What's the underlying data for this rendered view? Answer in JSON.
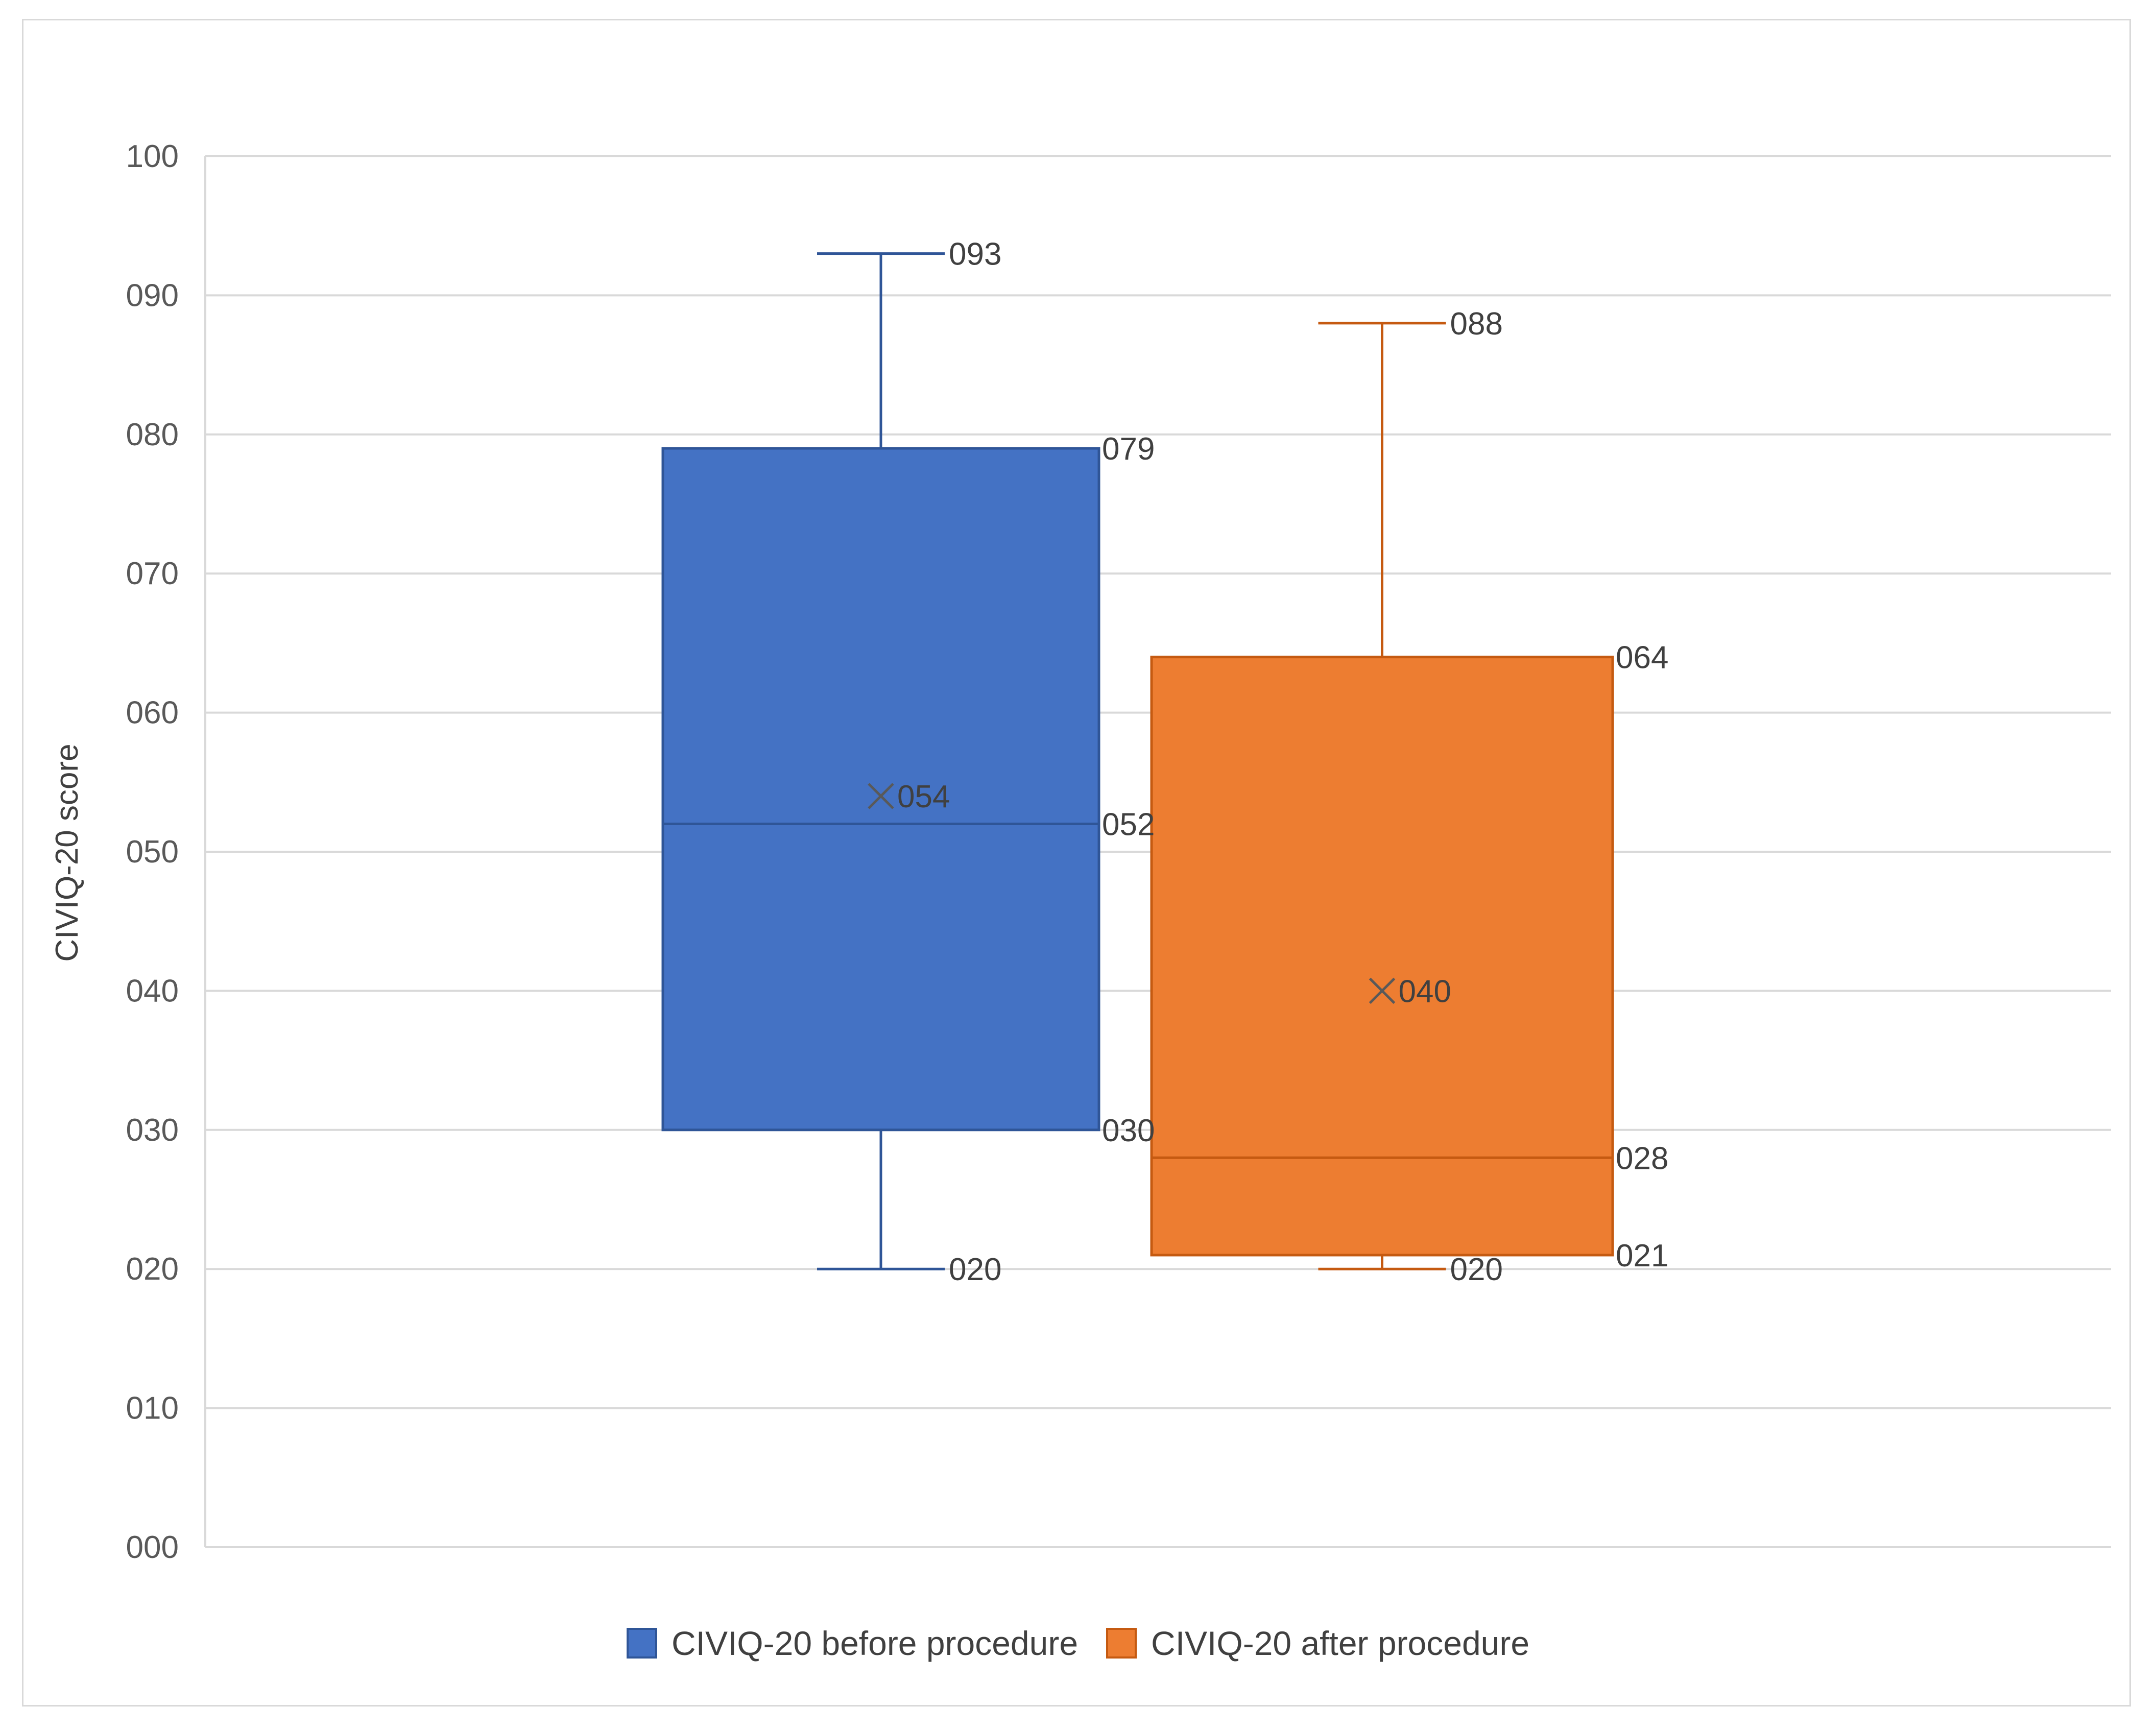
{
  "chart_data": {
    "type": "box",
    "ylabel": "CIVIQ-20 score",
    "ylim": [
      0,
      100
    ],
    "yticks": [
      0,
      10,
      20,
      30,
      40,
      50,
      60,
      70,
      80,
      90,
      100
    ],
    "ytick_labels": [
      "000",
      "010",
      "020",
      "030",
      "040",
      "050",
      "060",
      "070",
      "080",
      "090",
      "100"
    ],
    "grid": true,
    "legend_position": "bottom",
    "series": [
      {
        "name": "CIVIQ-20 before procedure",
        "color": "#4472C4",
        "edge_color": "#2F5597",
        "min": 20,
        "q1": 30,
        "median": 52,
        "q3": 79,
        "max": 93,
        "mean": 54,
        "labels": {
          "max": "093",
          "q3": "079",
          "mean": "054",
          "median": "052",
          "q1": "030",
          "min": "020"
        }
      },
      {
        "name": "CIVIQ-20 after procedure",
        "color": "#ED7D31",
        "edge_color": "#C55A11",
        "min": 20,
        "q1": 21,
        "median": 28,
        "q3": 64,
        "max": 88,
        "mean": 40,
        "labels": {
          "max": "088",
          "q3": "064",
          "mean": "040",
          "median": "028",
          "q1": "021",
          "min": "020"
        }
      }
    ]
  }
}
